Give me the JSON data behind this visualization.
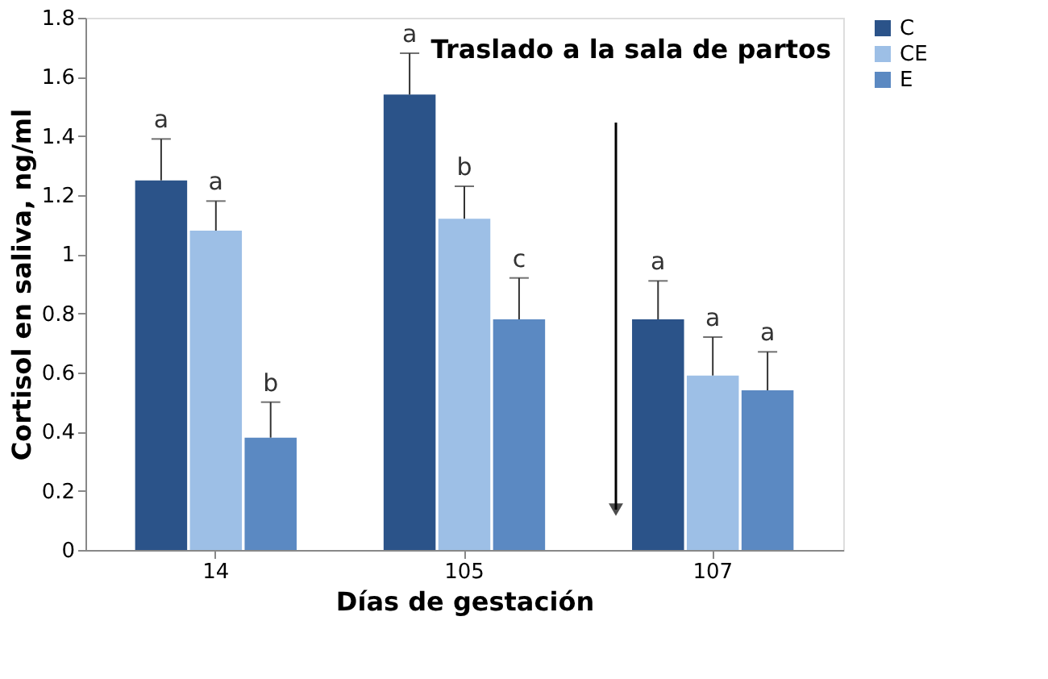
{
  "chart_data": {
    "type": "bar",
    "xlabel": "Días de gestación",
    "ylabel": "Cortisol en saliva, ng/ml",
    "categories": [
      "14",
      "105",
      "107"
    ],
    "series": [
      {
        "name": "C",
        "color": "#2b5389",
        "values": [
          1.25,
          1.54,
          0.78
        ],
        "errors": [
          [
            1.25,
            1.39
          ],
          [
            1.54,
            1.68
          ],
          [
            0.78,
            0.91
          ]
        ],
        "value_labels": [
          "a",
          "a",
          "a"
        ]
      },
      {
        "name": "CE",
        "color": "#9dbfe6",
        "values": [
          1.08,
          1.12,
          0.59
        ],
        "errors": [
          [
            1.08,
            1.18
          ],
          [
            1.12,
            1.23
          ],
          [
            0.59,
            0.72
          ]
        ],
        "value_labels": [
          "a",
          "b",
          "a"
        ]
      },
      {
        "name": "E",
        "color": "#5b89c2",
        "values": [
          0.38,
          0.78,
          0.54
        ],
        "errors": [
          [
            0.38,
            0.5
          ],
          [
            0.78,
            0.92
          ],
          [
            0.54,
            0.67
          ]
        ],
        "value_labels": [
          "b",
          "c",
          "a"
        ]
      }
    ],
    "ylim": [
      0,
      1.8
    ],
    "yticks": [
      0,
      0.2,
      0.4,
      0.6,
      0.8,
      1,
      1.2,
      1.4,
      1.6,
      1.8
    ],
    "grid": false,
    "legend": "right",
    "annotations": [
      "Traslado a la sala de partos"
    ]
  }
}
